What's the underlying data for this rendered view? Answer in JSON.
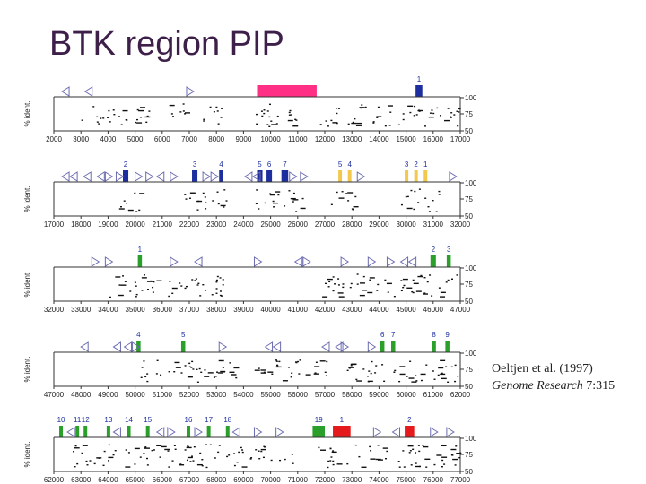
{
  "title": "BTK region PIP",
  "citation": {
    "line1": "Oeltjen et al. (1997)",
    "journal": "Genome Research",
    "volume": "7:315"
  },
  "chart_data": {
    "type": "scatter",
    "title": "BTK region PIP",
    "ylabel": "% ident.",
    "y_ticks": [
      "100",
      "75",
      "50"
    ],
    "ylim": [
      50,
      100
    ],
    "colors": {
      "pink": "#ff2f86",
      "blue": "#1d2f9e",
      "yellow": "#f2c94c",
      "green": "#2aa02a",
      "red": "#e41a1c"
    },
    "panels": [
      {
        "xlim": [
          2000,
          17000
        ],
        "x_ticks": [
          2000,
          3000,
          4000,
          5000,
          6000,
          7000,
          8000,
          9000,
          10000,
          11000,
          12000,
          13000,
          14000,
          15000,
          16000,
          17000
        ],
        "exons": [
          {
            "label": "1",
            "start": 15350,
            "end": 15600,
            "color": "blue"
          }
        ],
        "repeats": [
          {
            "start": 9500,
            "end": 11700,
            "color": "pink"
          }
        ],
        "left_arrows": [
          2300,
          3150
        ],
        "right_arrows": [
          6900
        ],
        "dot_ranges": [
          [
            3000,
            5500
          ],
          [
            6200,
            6900
          ],
          [
            7500,
            8300
          ],
          [
            9200,
            11300
          ],
          [
            11800,
            17000
          ]
        ]
      },
      {
        "xlim": [
          17000,
          32000
        ],
        "x_ticks": [
          17000,
          18000,
          19000,
          20000,
          21000,
          22000,
          23000,
          24000,
          25000,
          26000,
          27000,
          28000,
          29000,
          30000,
          31000,
          32000
        ],
        "exons": [
          {
            "label": "2",
            "start": 19550,
            "end": 19750,
            "color": "blue"
          },
          {
            "label": "3",
            "start": 22100,
            "end": 22300,
            "color": "blue"
          },
          {
            "label": "4",
            "start": 23100,
            "end": 23250,
            "color": "blue"
          },
          {
            "label": "5",
            "start": 24500,
            "end": 24700,
            "color": "blue"
          },
          {
            "label": "6",
            "start": 24850,
            "end": 25050,
            "color": "blue"
          },
          {
            "label": "7",
            "start": 25400,
            "end": 25650,
            "color": "blue"
          },
          {
            "label": "5",
            "start": 27500,
            "end": 27600,
            "color": "yellow"
          },
          {
            "label": "4",
            "start": 27850,
            "end": 27950,
            "color": "yellow"
          },
          {
            "label": "3",
            "start": 29950,
            "end": 30050,
            "color": "yellow"
          },
          {
            "label": "2",
            "start": 30300,
            "end": 30400,
            "color": "yellow"
          },
          {
            "label": "1",
            "start": 30650,
            "end": 30750,
            "color": "yellow"
          }
        ],
        "repeats": [],
        "left_arrows": [
          17300,
          17600,
          18100,
          18600,
          20800,
          24050,
          24350
        ],
        "right_arrows": [
          18900,
          19300,
          20000,
          20400,
          21300,
          22500,
          22800,
          25700,
          26100,
          28200,
          31600
        ],
        "dot_ranges": [
          [
            19400,
            20200
          ],
          [
            21800,
            23400
          ],
          [
            24400,
            26200
          ],
          [
            27200,
            28200
          ],
          [
            29800,
            31200
          ]
        ]
      },
      {
        "xlim": [
          32000,
          47000
        ],
        "x_ticks": [
          32000,
          33000,
          34000,
          35000,
          36000,
          37000,
          38000,
          39000,
          40000,
          41000,
          42000,
          43000,
          44000,
          45000,
          46000,
          47000
        ],
        "exons": [
          {
            "label": "1",
            "start": 35100,
            "end": 35250,
            "color": "green"
          },
          {
            "label": "2",
            "start": 45900,
            "end": 46100,
            "color": "green"
          },
          {
            "label": "3",
            "start": 46500,
            "end": 46650,
            "color": "green"
          }
        ],
        "repeats": [],
        "left_arrows": [
          37200,
          40900,
          44800,
          45100
        ],
        "right_arrows": [
          33400,
          33900,
          36300,
          39400,
          41200,
          42600,
          43600,
          44300
        ],
        "dot_ranges": [
          [
            34000,
            38500
          ],
          [
            41900,
            47000
          ]
        ]
      },
      {
        "xlim": [
          47000,
          62000
        ],
        "x_ticks": [
          47000,
          48000,
          49000,
          50000,
          51000,
          52000,
          53000,
          54000,
          55000,
          56000,
          57000,
          58000,
          59000,
          60000,
          61000,
          62000
        ],
        "exons": [
          {
            "label": "4",
            "start": 50050,
            "end": 50200,
            "color": "green"
          },
          {
            "label": "5",
            "start": 51700,
            "end": 51850,
            "color": "green"
          },
          {
            "label": "6",
            "start": 59050,
            "end": 59200,
            "color": "green"
          },
          {
            "label": "7",
            "start": 59450,
            "end": 59600,
            "color": "green"
          },
          {
            "label": "8",
            "start": 60950,
            "end": 61100,
            "color": "green"
          },
          {
            "label": "9",
            "start": 61450,
            "end": 61600,
            "color": "green"
          }
        ],
        "repeats": [],
        "left_arrows": [
          48000,
          49200,
          49600,
          54800,
          55100,
          56900,
          57400
        ],
        "right_arrows": [
          49900,
          53100,
          57600,
          58600
        ],
        "dot_ranges": [
          [
            50000,
            53800
          ],
          [
            54400,
            57200
          ],
          [
            57800,
            62000
          ]
        ]
      },
      {
        "xlim": [
          62000,
          77000
        ],
        "x_ticks": [
          62000,
          63000,
          64000,
          65000,
          66000,
          67000,
          68000,
          69000,
          70000,
          71000,
          72000,
          73000,
          74000,
          75000,
          76000,
          77000
        ],
        "exons": [
          {
            "label": "10",
            "start": 62200,
            "end": 62300,
            "color": "green"
          },
          {
            "label": "11",
            "start": 62800,
            "end": 62900,
            "color": "green"
          },
          {
            "label": "12",
            "start": 63100,
            "end": 63200,
            "color": "green"
          },
          {
            "label": "13",
            "start": 63950,
            "end": 64050,
            "color": "green"
          },
          {
            "label": "14",
            "start": 64700,
            "end": 64800,
            "color": "green"
          },
          {
            "label": "15",
            "start": 65400,
            "end": 65500,
            "color": "green"
          },
          {
            "label": "16",
            "start": 66900,
            "end": 67000,
            "color": "green"
          },
          {
            "label": "17",
            "start": 67650,
            "end": 67750,
            "color": "green"
          },
          {
            "label": "18",
            "start": 68350,
            "end": 68450,
            "color": "green"
          },
          {
            "label": "19",
            "start": 71550,
            "end": 72000,
            "color": "green"
          },
          {
            "label": "1",
            "start": 72300,
            "end": 72950,
            "color": "red"
          },
          {
            "label": "2",
            "start": 74950,
            "end": 75300,
            "color": "red"
          }
        ],
        "repeats": [],
        "left_arrows": [
          62500,
          64200,
          65800,
          68600,
          74500
        ],
        "right_arrows": [
          66200,
          67200,
          69400,
          70200,
          73800,
          75900,
          76500
        ],
        "dot_ranges": [
          [
            62500,
            64300
          ],
          [
            64600,
            70800
          ],
          [
            71500,
            77000
          ]
        ]
      }
    ]
  }
}
